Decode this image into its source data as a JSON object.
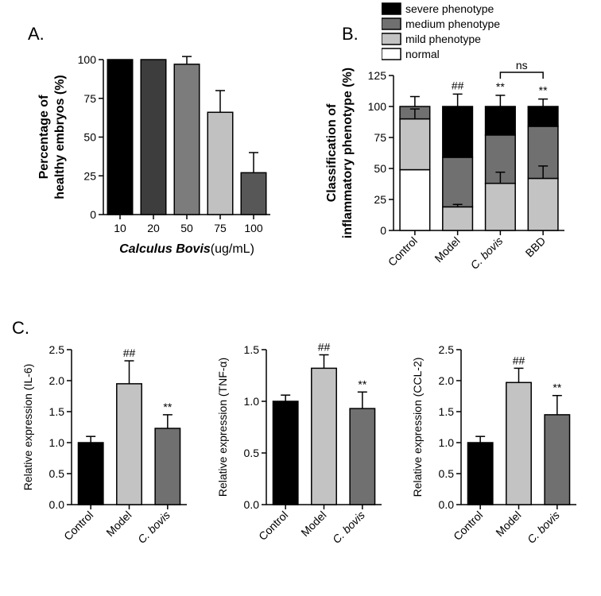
{
  "labels": {
    "A": "A.",
    "B": "B.",
    "C": "C."
  },
  "panelA": {
    "type": "bar",
    "x_title": "Calculus Bovis(ug/mL)",
    "y_title": "Percentage of\nhealthy embryos (%)",
    "categories": [
      "10",
      "20",
      "50",
      "75",
      "100"
    ],
    "values": [
      100,
      100,
      97,
      66,
      27
    ],
    "errors": [
      0,
      0,
      5,
      14,
      13
    ],
    "bar_colors": [
      "#000000",
      "#3d3d3d",
      "#7c7c7c",
      "#c1c1c1",
      "#575757"
    ],
    "ylim": [
      0,
      100
    ],
    "ytick_step": 25,
    "bar_width": 0.75,
    "background": "#ffffff"
  },
  "panelB": {
    "type": "stacked-bar",
    "y_title": "Classification of\ninflammatory phenotype (%)",
    "categories": [
      "Control",
      "Model",
      "C. bovis",
      "BBD"
    ],
    "category_styles": [
      "regular",
      "regular",
      "italic-part:C.",
      "regular"
    ],
    "series": [
      {
        "name": "normal",
        "color": "#ffffff"
      },
      {
        "name": "mild phenotype",
        "color": "#c3c3c3"
      },
      {
        "name": "medium phenotype",
        "color": "#707070"
      },
      {
        "name": "severe phenotype",
        "color": "#000000"
      }
    ],
    "stacks": [
      [
        49,
        41,
        10,
        0
      ],
      [
        0,
        19,
        40,
        41
      ],
      [
        0,
        38,
        39,
        23
      ],
      [
        0,
        42,
        42,
        16
      ]
    ],
    "err_top": [
      8,
      10,
      9,
      6
    ],
    "err_seg2": [
      8,
      2,
      9,
      10
    ],
    "ylim": [
      0,
      125
    ],
    "ytick_step": 25,
    "bar_width": 0.7,
    "sig": [
      "",
      "##",
      "**",
      "**"
    ],
    "ns_bracket": {
      "from": 2,
      "to": 3,
      "label": "ns"
    },
    "background": "#ffffff"
  },
  "panelC": {
    "charts": [
      {
        "y_title": "Relative expression (IL-6)",
        "categories": [
          "Control",
          "Model",
          "C. bovis"
        ],
        "values": [
          1.0,
          1.95,
          1.23
        ],
        "errors": [
          0.1,
          0.37,
          0.22
        ],
        "sig": [
          "",
          "##",
          "**"
        ],
        "ylim": [
          0,
          2.5
        ],
        "ytick_step": 0.5,
        "bar_colors": [
          "#000000",
          "#c3c3c3",
          "#707070"
        ]
      },
      {
        "y_title": "Relative expression (TNF-α)",
        "categories": [
          "Control",
          "Model",
          "C. bovis"
        ],
        "values": [
          1.0,
          1.32,
          0.93
        ],
        "errors": [
          0.06,
          0.13,
          0.16
        ],
        "sig": [
          "",
          "##",
          "**"
        ],
        "ylim": [
          0,
          1.5
        ],
        "ytick_step": 0.5,
        "bar_colors": [
          "#000000",
          "#c3c3c3",
          "#707070"
        ]
      },
      {
        "y_title": "Relative expression (CCL-2)",
        "categories": [
          "Control",
          "Model",
          "C. bovis"
        ],
        "values": [
          1.0,
          1.97,
          1.45
        ],
        "errors": [
          0.1,
          0.23,
          0.31
        ],
        "sig": [
          "",
          "##",
          "**"
        ],
        "ylim": [
          0,
          2.5
        ],
        "ytick_step": 0.5,
        "bar_colors": [
          "#000000",
          "#c3c3c3",
          "#707070"
        ]
      }
    ],
    "bar_width": 0.65,
    "background": "#ffffff"
  }
}
